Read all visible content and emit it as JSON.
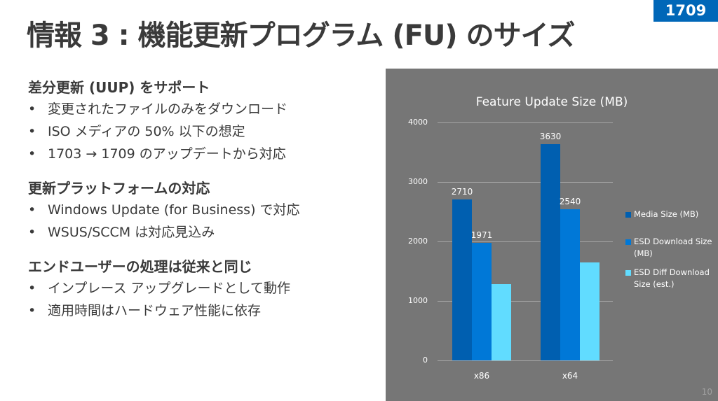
{
  "slide": {
    "title": "情報 3 : 機能更新プログラム (FU) のサイズ",
    "version_badge": "1709",
    "page_number": "10"
  },
  "sections": [
    {
      "heading": "差分更新 (UUP) をサポート",
      "bullets": [
        "変更されたファイルのみをダウンロード",
        "ISO メディアの 50% 以下の想定",
        "1703 → 1709 のアップデートから対応"
      ]
    },
    {
      "heading": "更新プラットフォームの対応",
      "bullets": [
        "Windows Update (for Business) で対応",
        "WSUS/SCCM は対応見込み"
      ]
    },
    {
      "heading": "エンドユーザーの処理は従来と同じ",
      "bullets": [
        "インプレース アップグレードとして動作",
        "適用時間はハードウェア性能に依存"
      ]
    }
  ],
  "bullet_char": "•",
  "chart_data": {
    "type": "bar",
    "title": "Feature Update Size (MB)",
    "categories": [
      "x86",
      "x64"
    ],
    "series": [
      {
        "name": "Media Size (MB)",
        "values": [
          2710,
          3630
        ],
        "color": "#005fb0",
        "labels": [
          "2710",
          "3630"
        ]
      },
      {
        "name": "ESD Download Size (MB)",
        "values": [
          1971,
          2540
        ],
        "color": "#0078d7",
        "labels": [
          "1971",
          "2540"
        ]
      },
      {
        "name": "ESD Diff Download Size (est.)",
        "values": [
          1280,
          1650
        ],
        "color": "#61dcff",
        "labels": [
          "",
          ""
        ]
      }
    ],
    "yticks": [
      "0",
      "1000",
      "2000",
      "3000",
      "4000"
    ],
    "ylim": [
      0,
      4000
    ],
    "xlabel": "",
    "ylabel": "",
    "grid": true,
    "legend_position": "right",
    "background": "#767676"
  }
}
